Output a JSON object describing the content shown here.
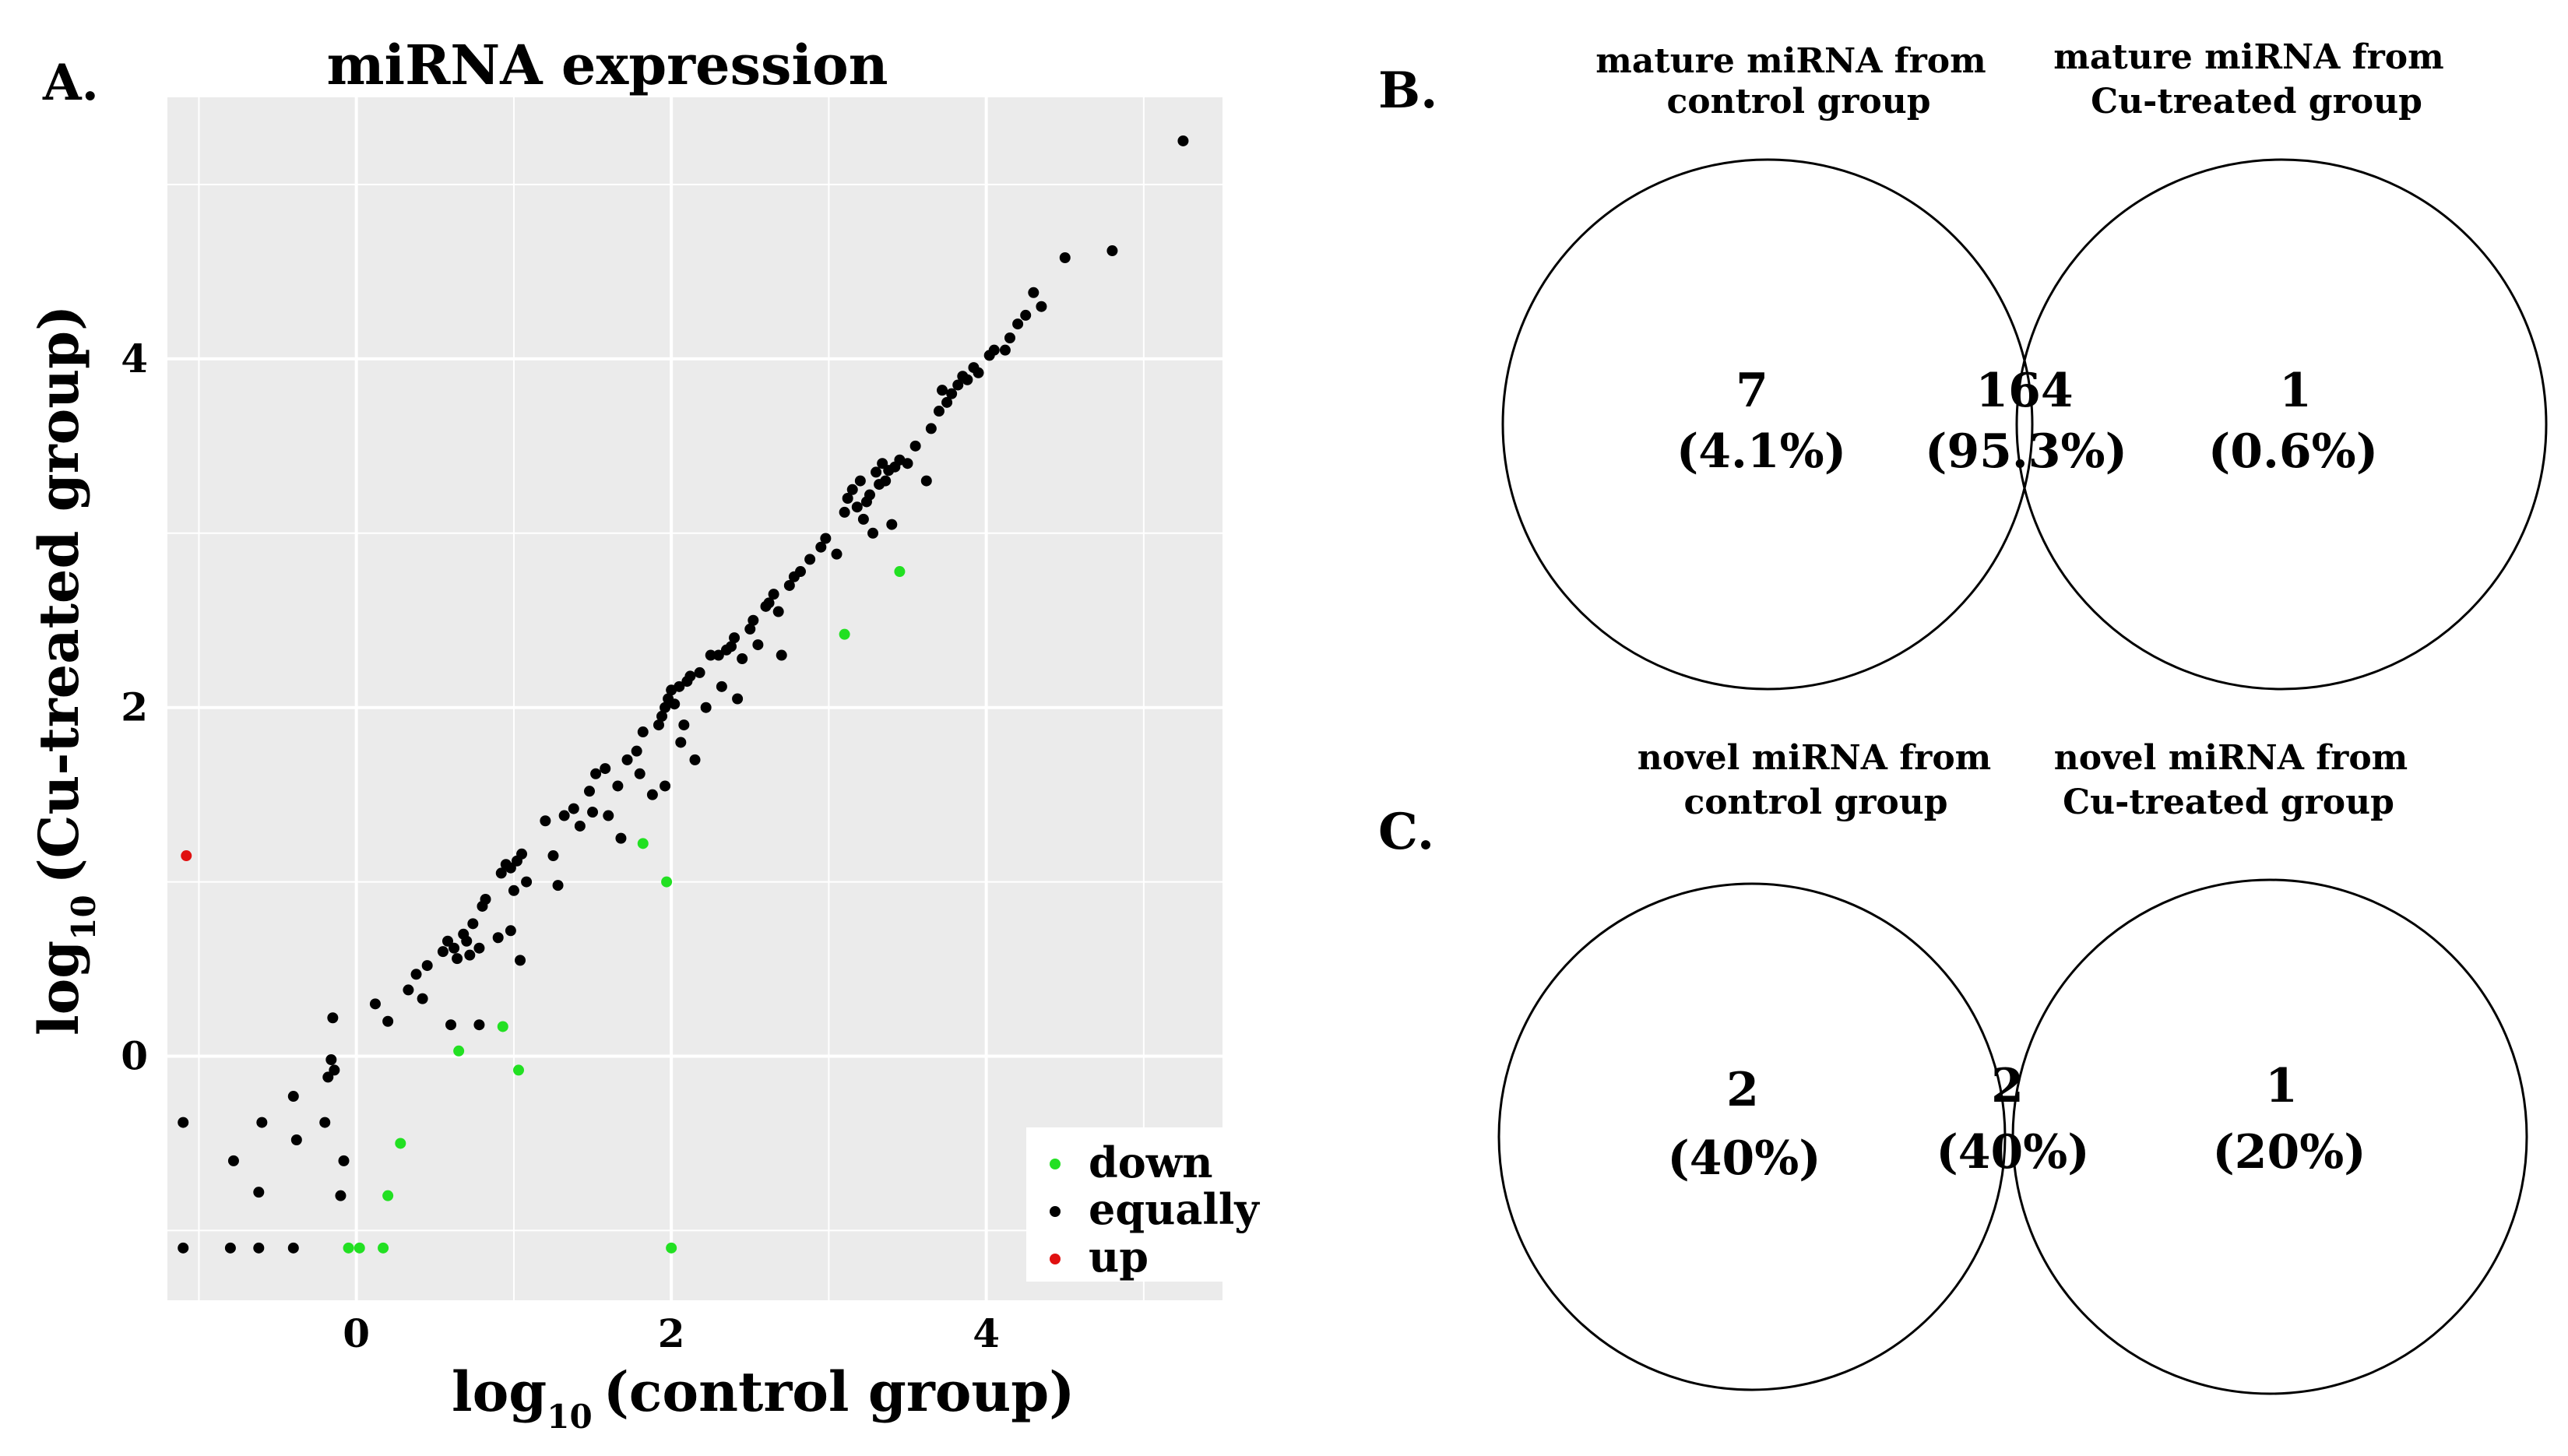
{
  "panels": {
    "a_letter": "A.",
    "b_letter": "B.",
    "c_letter": "C."
  },
  "chart_data": [
    {
      "type": "scatter",
      "title": "miRNA expression",
      "xlabel_base": "log",
      "xlabel_sub": "10",
      "xlabel_rest": "(control group)",
      "ylabel_base": "log",
      "ylabel_sub": "10",
      "ylabel_rest": "(Cu-treated group)",
      "xlim": [
        -1.2,
        5.5
      ],
      "ylim": [
        -1.4,
        5.5
      ],
      "xticks": [
        0,
        2,
        4
      ],
      "yticks": [
        0,
        2,
        4
      ],
      "xtick_labels": [
        "0",
        "2",
        "4"
      ],
      "ytick_labels": [
        "0",
        "2",
        "4"
      ],
      "grid": true,
      "legend_position": "bottom-right",
      "colors": {
        "down": "#22e022",
        "equally": "#000000",
        "up": "#e01010",
        "panel_bg": "#ebebeb",
        "grid": "#ffffff"
      },
      "series": [
        {
          "name": "down",
          "points": [
            [
              -0.05,
              -1.1
            ],
            [
              0.02,
              -1.1
            ],
            [
              0.17,
              -1.1
            ],
            [
              0.2,
              -0.8
            ],
            [
              0.28,
              -0.5
            ],
            [
              0.65,
              0.03
            ],
            [
              0.93,
              0.17
            ],
            [
              1.03,
              -0.08
            ],
            [
              1.82,
              1.22
            ],
            [
              1.97,
              1.0
            ],
            [
              2.0,
              -1.1
            ],
            [
              3.1,
              2.42
            ],
            [
              3.45,
              2.78
            ]
          ]
        },
        {
          "name": "equally",
          "points": [
            [
              -1.1,
              -1.1
            ],
            [
              -0.8,
              -1.1
            ],
            [
              -0.62,
              -1.1
            ],
            [
              -0.4,
              -1.1
            ],
            [
              -1.1,
              -0.38
            ],
            [
              -0.78,
              -0.6
            ],
            [
              -0.62,
              -0.78
            ],
            [
              -0.6,
              -0.38
            ],
            [
              -0.38,
              -0.48
            ],
            [
              -0.4,
              -0.23
            ],
            [
              -0.18,
              -0.12
            ],
            [
              -0.2,
              -0.38
            ],
            [
              -0.16,
              -0.02
            ],
            [
              -0.14,
              -0.08
            ],
            [
              -0.1,
              -0.8
            ],
            [
              -0.08,
              -0.6
            ],
            [
              -0.15,
              0.22
            ],
            [
              0.12,
              0.3
            ],
            [
              0.2,
              0.2
            ],
            [
              0.33,
              0.38
            ],
            [
              0.38,
              0.47
            ],
            [
              0.45,
              0.52
            ],
            [
              0.42,
              0.33
            ],
            [
              0.55,
              0.6
            ],
            [
              0.58,
              0.66
            ],
            [
              0.62,
              0.62
            ],
            [
              0.64,
              0.56
            ],
            [
              0.68,
              0.7
            ],
            [
              0.7,
              0.66
            ],
            [
              0.72,
              0.58
            ],
            [
              0.74,
              0.76
            ],
            [
              0.78,
              0.62
            ],
            [
              0.8,
              0.86
            ],
            [
              0.82,
              0.9
            ],
            [
              0.6,
              0.18
            ],
            [
              0.78,
              0.18
            ],
            [
              0.9,
              0.68
            ],
            [
              0.98,
              0.72
            ],
            [
              0.92,
              1.05
            ],
            [
              0.95,
              1.1
            ],
            [
              0.98,
              1.08
            ],
            [
              1.02,
              1.12
            ],
            [
              1.05,
              1.16
            ],
            [
              1.0,
              0.95
            ],
            [
              1.08,
              1.0
            ],
            [
              1.04,
              0.55
            ],
            [
              1.2,
              1.35
            ],
            [
              1.25,
              1.15
            ],
            [
              1.28,
              0.98
            ],
            [
              1.32,
              1.38
            ],
            [
              1.38,
              1.42
            ],
            [
              1.42,
              1.32
            ],
            [
              1.48,
              1.52
            ],
            [
              1.5,
              1.4
            ],
            [
              1.52,
              1.62
            ],
            [
              1.58,
              1.65
            ],
            [
              1.6,
              1.38
            ],
            [
              1.66,
              1.55
            ],
            [
              1.72,
              1.7
            ],
            [
              1.78,
              1.75
            ],
            [
              1.8,
              1.62
            ],
            [
              1.82,
              1.86
            ],
            [
              1.68,
              1.25
            ],
            [
              1.88,
              1.5
            ],
            [
              1.92,
              1.9
            ],
            [
              1.94,
              1.95
            ],
            [
              1.96,
              2.0
            ],
            [
              1.98,
              2.05
            ],
            [
              1.96,
              1.55
            ],
            [
              2.0,
              2.1
            ],
            [
              2.02,
              2.02
            ],
            [
              2.05,
              2.12
            ],
            [
              2.06,
              1.8
            ],
            [
              2.08,
              1.9
            ],
            [
              2.1,
              2.15
            ],
            [
              2.12,
              2.18
            ],
            [
              2.15,
              1.7
            ],
            [
              2.18,
              2.2
            ],
            [
              2.22,
              2.0
            ],
            [
              2.25,
              2.3
            ],
            [
              2.3,
              2.3
            ],
            [
              2.32,
              2.12
            ],
            [
              2.35,
              2.33
            ],
            [
              2.38,
              2.35
            ],
            [
              2.4,
              2.4
            ],
            [
              2.42,
              2.05
            ],
            [
              2.45,
              2.28
            ],
            [
              2.5,
              2.45
            ],
            [
              2.52,
              2.5
            ],
            [
              2.55,
              2.36
            ],
            [
              2.6,
              2.58
            ],
            [
              2.62,
              2.6
            ],
            [
              2.65,
              2.65
            ],
            [
              2.68,
              2.55
            ],
            [
              2.7,
              2.3
            ],
            [
              2.75,
              2.7
            ],
            [
              2.78,
              2.75
            ],
            [
              2.82,
              2.78
            ],
            [
              2.88,
              2.85
            ],
            [
              2.95,
              2.92
            ],
            [
              2.98,
              2.97
            ],
            [
              3.05,
              2.88
            ],
            [
              3.1,
              3.12
            ],
            [
              3.12,
              3.2
            ],
            [
              3.15,
              3.25
            ],
            [
              3.18,
              3.15
            ],
            [
              3.2,
              3.3
            ],
            [
              3.22,
              3.08
            ],
            [
              3.24,
              3.18
            ],
            [
              3.26,
              3.22
            ],
            [
              3.28,
              3.0
            ],
            [
              3.3,
              3.35
            ],
            [
              3.32,
              3.28
            ],
            [
              3.34,
              3.4
            ],
            [
              3.36,
              3.3
            ],
            [
              3.38,
              3.36
            ],
            [
              3.4,
              3.05
            ],
            [
              3.42,
              3.38
            ],
            [
              3.45,
              3.42
            ],
            [
              3.5,
              3.4
            ],
            [
              3.55,
              3.5
            ],
            [
              3.62,
              3.3
            ],
            [
              3.65,
              3.6
            ],
            [
              3.7,
              3.7
            ],
            [
              3.72,
              3.82
            ],
            [
              3.75,
              3.75
            ],
            [
              3.78,
              3.8
            ],
            [
              3.82,
              3.85
            ],
            [
              3.85,
              3.9
            ],
            [
              3.88,
              3.88
            ],
            [
              3.92,
              3.95
            ],
            [
              3.95,
              3.92
            ],
            [
              4.02,
              4.02
            ],
            [
              4.05,
              4.05
            ],
            [
              4.12,
              4.05
            ],
            [
              4.15,
              4.12
            ],
            [
              4.2,
              4.2
            ],
            [
              4.25,
              4.25
            ],
            [
              4.3,
              4.38
            ],
            [
              4.35,
              4.3
            ],
            [
              4.5,
              4.58
            ],
            [
              4.8,
              4.62
            ],
            [
              5.25,
              5.25
            ]
          ]
        },
        {
          "name": "up",
          "points": [
            [
              -1.08,
              1.15
            ]
          ]
        }
      ]
    },
    {
      "type": "venn",
      "panel": "B",
      "left_header_line1": "mature miRNA from",
      "left_header_line2": "control group",
      "right_header_line1": "mature miRNA from",
      "right_header_line2": "Cu-treated group",
      "left_only": {
        "count": "7",
        "percent": "(4.1%)"
      },
      "both": {
        "count": "164",
        "percent": "(95.3%)"
      },
      "right_only": {
        "count": "1",
        "percent": "(0.6%)"
      }
    },
    {
      "type": "venn",
      "panel": "C",
      "left_header_line1": "novel miRNA from",
      "left_header_line2": "control group",
      "right_header_line1": "novel miRNA from",
      "right_header_line2": "Cu-treated group",
      "left_only": {
        "count": "2",
        "percent": "(40%)"
      },
      "both": {
        "count": "2",
        "percent": "(40%)"
      },
      "right_only": {
        "count": "1",
        "percent": "(20%)"
      }
    }
  ]
}
